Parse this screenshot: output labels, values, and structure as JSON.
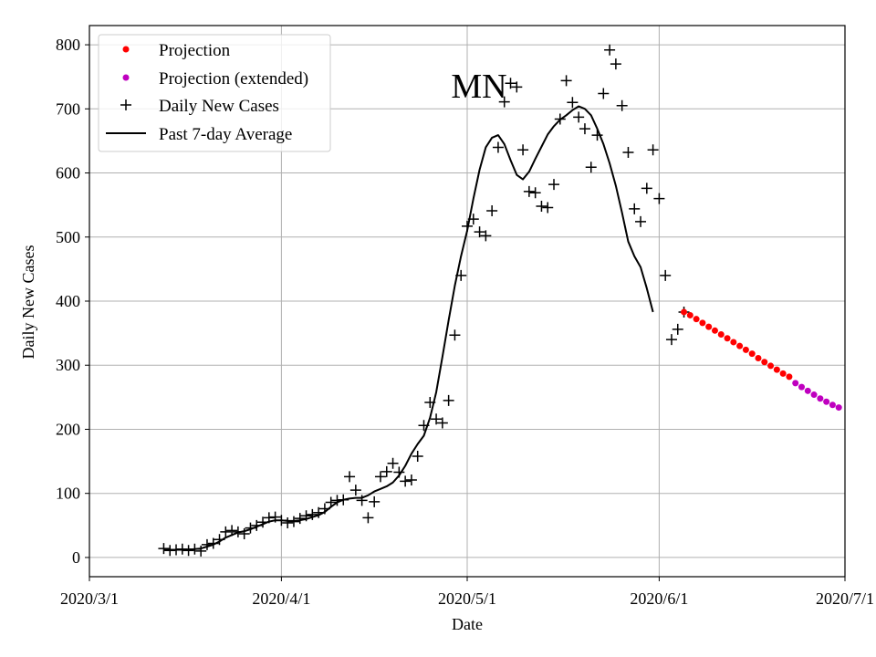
{
  "chart_data": {
    "type": "line",
    "title": "MN",
    "xlabel": "Date",
    "ylabel": "Daily New Cases",
    "x_axis": {
      "type": "date",
      "range": [
        "2020-03-01",
        "2020-07-01"
      ],
      "ticks": [
        {
          "date": "2020-03-01",
          "label": "2020/3/1"
        },
        {
          "date": "2020-04-01",
          "label": "2020/4/1"
        },
        {
          "date": "2020-05-01",
          "label": "2020/5/1"
        },
        {
          "date": "2020-06-01",
          "label": "2020/6/1"
        },
        {
          "date": "2020-07-01",
          "label": "2020/7/1"
        }
      ]
    },
    "y_axis": {
      "range": [
        -30,
        830
      ],
      "ticks": [
        0,
        100,
        200,
        300,
        400,
        500,
        600,
        700,
        800
      ]
    },
    "grid": true,
    "legend_position": "top-left",
    "colors": {
      "projection": "#ff0000",
      "projection_extended": "#bf00bf",
      "daily": "#000000",
      "average": "#000000",
      "grid": "#b0b0b0"
    },
    "series": [
      {
        "name": "Projection",
        "kind": "dots",
        "color": "#ff0000",
        "points": [
          [
            "2020-06-05",
            383
          ],
          [
            "2020-06-06",
            378
          ],
          [
            "2020-06-07",
            372
          ],
          [
            "2020-06-08",
            366
          ],
          [
            "2020-06-09",
            360
          ],
          [
            "2020-06-10",
            354
          ],
          [
            "2020-06-11",
            348
          ],
          [
            "2020-06-12",
            342
          ],
          [
            "2020-06-13",
            336
          ],
          [
            "2020-06-14",
            330
          ],
          [
            "2020-06-15",
            324
          ],
          [
            "2020-06-16",
            318
          ],
          [
            "2020-06-17",
            311
          ],
          [
            "2020-06-18",
            305
          ],
          [
            "2020-06-19",
            299
          ],
          [
            "2020-06-20",
            293
          ],
          [
            "2020-06-21",
            287
          ],
          [
            "2020-06-22",
            282
          ]
        ]
      },
      {
        "name": "Projection (extended)",
        "kind": "dots",
        "color": "#bf00bf",
        "points": [
          [
            "2020-06-23",
            272
          ],
          [
            "2020-06-24",
            266
          ],
          [
            "2020-06-25",
            260
          ],
          [
            "2020-06-26",
            254
          ],
          [
            "2020-06-27",
            248
          ],
          [
            "2020-06-28",
            243
          ],
          [
            "2020-06-29",
            238
          ],
          [
            "2020-06-30",
            234
          ]
        ]
      },
      {
        "name": "Daily New Cases",
        "kind": "plus",
        "color": "#000000",
        "points": [
          [
            "2020-03-13",
            14
          ],
          [
            "2020-03-14",
            11
          ],
          [
            "2020-03-15",
            12
          ],
          [
            "2020-03-16",
            13
          ],
          [
            "2020-03-17",
            11
          ],
          [
            "2020-03-18",
            13
          ],
          [
            "2020-03-19",
            10
          ],
          [
            "2020-03-20",
            20
          ],
          [
            "2020-03-21",
            22
          ],
          [
            "2020-03-22",
            28
          ],
          [
            "2020-03-23",
            40
          ],
          [
            "2020-03-24",
            42
          ],
          [
            "2020-03-25",
            40
          ],
          [
            "2020-03-26",
            37
          ],
          [
            "2020-03-27",
            46
          ],
          [
            "2020-03-28",
            50
          ],
          [
            "2020-03-29",
            55
          ],
          [
            "2020-03-30",
            62
          ],
          [
            "2020-03-31",
            63
          ],
          [
            "2020-04-01",
            58
          ],
          [
            "2020-04-02",
            54
          ],
          [
            "2020-04-03",
            56
          ],
          [
            "2020-04-04",
            61
          ],
          [
            "2020-04-05",
            65
          ],
          [
            "2020-04-06",
            67
          ],
          [
            "2020-04-07",
            70
          ],
          [
            "2020-04-08",
            76
          ],
          [
            "2020-04-09",
            86
          ],
          [
            "2020-04-10",
            89
          ],
          [
            "2020-04-11",
            90
          ],
          [
            "2020-04-12",
            126
          ],
          [
            "2020-04-13",
            105
          ],
          [
            "2020-04-14",
            89
          ],
          [
            "2020-04-15",
            62
          ],
          [
            "2020-04-16",
            87
          ],
          [
            "2020-04-17",
            126
          ],
          [
            "2020-04-18",
            134
          ],
          [
            "2020-04-19",
            147
          ],
          [
            "2020-04-20",
            133
          ],
          [
            "2020-04-21",
            119
          ],
          [
            "2020-04-22",
            121
          ],
          [
            "2020-04-23",
            158
          ],
          [
            "2020-04-24",
            206
          ],
          [
            "2020-04-25",
            242
          ],
          [
            "2020-04-26",
            216
          ],
          [
            "2020-04-27",
            210
          ],
          [
            "2020-04-28",
            245
          ],
          [
            "2020-04-29",
            347
          ],
          [
            "2020-04-30",
            440
          ],
          [
            "2020-05-01",
            517
          ],
          [
            "2020-05-02",
            528
          ],
          [
            "2020-05-03",
            508
          ],
          [
            "2020-05-04",
            502
          ],
          [
            "2020-05-05",
            541
          ],
          [
            "2020-05-06",
            640
          ],
          [
            "2020-05-07",
            711
          ],
          [
            "2020-05-08",
            740
          ],
          [
            "2020-05-09",
            734
          ],
          [
            "2020-05-10",
            636
          ],
          [
            "2020-05-11",
            571
          ],
          [
            "2020-05-12",
            569
          ],
          [
            "2020-05-13",
            548
          ],
          [
            "2020-05-14",
            546
          ],
          [
            "2020-05-15",
            582
          ],
          [
            "2020-05-16",
            684
          ],
          [
            "2020-05-17",
            744
          ],
          [
            "2020-05-18",
            710
          ],
          [
            "2020-05-19",
            687
          ],
          [
            "2020-05-20",
            669
          ],
          [
            "2020-05-21",
            609
          ],
          [
            "2020-05-22",
            659
          ],
          [
            "2020-05-23",
            724
          ],
          [
            "2020-05-24",
            792
          ],
          [
            "2020-05-25",
            770
          ],
          [
            "2020-05-26",
            705
          ],
          [
            "2020-05-27",
            632
          ],
          [
            "2020-05-28",
            544
          ],
          [
            "2020-05-29",
            524
          ],
          [
            "2020-05-30",
            576
          ],
          [
            "2020-05-31",
            636
          ],
          [
            "2020-06-01",
            560
          ],
          [
            "2020-06-02",
            440
          ],
          [
            "2020-06-03",
            340
          ],
          [
            "2020-06-04",
            356
          ],
          [
            "2020-06-05",
            383
          ]
        ]
      },
      {
        "name": "Past 7-day Average",
        "kind": "line",
        "color": "#000000",
        "points": [
          [
            "2020-03-13",
            12
          ],
          [
            "2020-03-14",
            12
          ],
          [
            "2020-03-15",
            12
          ],
          [
            "2020-03-16",
            12
          ],
          [
            "2020-03-17",
            12
          ],
          [
            "2020-03-18",
            13
          ],
          [
            "2020-03-19",
            14
          ],
          [
            "2020-03-20",
            17
          ],
          [
            "2020-03-21",
            20
          ],
          [
            "2020-03-22",
            25
          ],
          [
            "2020-03-23",
            31
          ],
          [
            "2020-03-24",
            35
          ],
          [
            "2020-03-25",
            39
          ],
          [
            "2020-03-26",
            41
          ],
          [
            "2020-03-27",
            44
          ],
          [
            "2020-03-28",
            48
          ],
          [
            "2020-03-29",
            52
          ],
          [
            "2020-03-30",
            56
          ],
          [
            "2020-03-31",
            58
          ],
          [
            "2020-04-01",
            58
          ],
          [
            "2020-04-02",
            57
          ],
          [
            "2020-04-03",
            57
          ],
          [
            "2020-04-04",
            58
          ],
          [
            "2020-04-05",
            60
          ],
          [
            "2020-04-06",
            63
          ],
          [
            "2020-04-07",
            66
          ],
          [
            "2020-04-08",
            71
          ],
          [
            "2020-04-09",
            79
          ],
          [
            "2020-04-10",
            86
          ],
          [
            "2020-04-11",
            90
          ],
          [
            "2020-04-12",
            92
          ],
          [
            "2020-04-13",
            93
          ],
          [
            "2020-04-14",
            93
          ],
          [
            "2020-04-15",
            97
          ],
          [
            "2020-04-16",
            103
          ],
          [
            "2020-04-17",
            107
          ],
          [
            "2020-04-18",
            111
          ],
          [
            "2020-04-19",
            117
          ],
          [
            "2020-04-20",
            128
          ],
          [
            "2020-04-21",
            143
          ],
          [
            "2020-04-22",
            162
          ],
          [
            "2020-04-23",
            177
          ],
          [
            "2020-04-24",
            190
          ],
          [
            "2020-04-25",
            218
          ],
          [
            "2020-04-26",
            258
          ],
          [
            "2020-04-27",
            313
          ],
          [
            "2020-04-28",
            370
          ],
          [
            "2020-04-29",
            424
          ],
          [
            "2020-04-30",
            470
          ],
          [
            "2020-05-01",
            510
          ],
          [
            "2020-05-02",
            560
          ],
          [
            "2020-05-03",
            605
          ],
          [
            "2020-05-04",
            640
          ],
          [
            "2020-05-05",
            655
          ],
          [
            "2020-05-06",
            659
          ],
          [
            "2020-05-07",
            645
          ],
          [
            "2020-05-08",
            620
          ],
          [
            "2020-05-09",
            597
          ],
          [
            "2020-05-10",
            590
          ],
          [
            "2020-05-11",
            602
          ],
          [
            "2020-05-12",
            622
          ],
          [
            "2020-05-13",
            641
          ],
          [
            "2020-05-14",
            660
          ],
          [
            "2020-05-15",
            673
          ],
          [
            "2020-05-16",
            683
          ],
          [
            "2020-05-17",
            690
          ],
          [
            "2020-05-18",
            698
          ],
          [
            "2020-05-19",
            704
          ],
          [
            "2020-05-20",
            700
          ],
          [
            "2020-05-21",
            690
          ],
          [
            "2020-05-22",
            669
          ],
          [
            "2020-05-23",
            645
          ],
          [
            "2020-05-24",
            615
          ],
          [
            "2020-05-25",
            580
          ],
          [
            "2020-05-26",
            538
          ],
          [
            "2020-05-27",
            493
          ],
          [
            "2020-05-28",
            470
          ],
          [
            "2020-05-29",
            453
          ],
          [
            "2020-05-30",
            420
          ],
          [
            "2020-05-31",
            383
          ]
        ]
      }
    ]
  }
}
